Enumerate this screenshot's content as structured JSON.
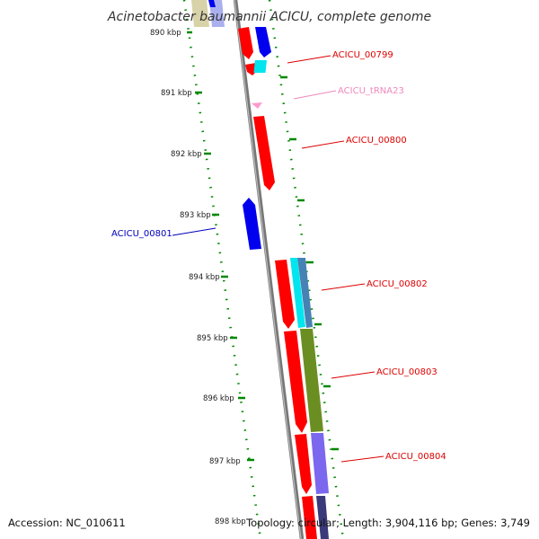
{
  "title": "Acinetobacter baumannii ACICU, complete genome",
  "footer": {
    "accession": "Accession: NC_010611",
    "summary": "Topology: circular; Length: 3,904,116 bp; Genes: 3,749"
  },
  "ticks": [
    "890 kbp",
    "891 kbp",
    "892 kbp",
    "893 kbp",
    "894 kbp",
    "895 kbp",
    "896 kbp",
    "897 kbp",
    "898 kbp"
  ],
  "genes": [
    {
      "label": "ACICU_00799",
      "color": "#dd0000"
    },
    {
      "label": "ACICU_tRNA23",
      "color": "#ee88bb"
    },
    {
      "label": "ACICU_00800",
      "color": "#dd0000"
    },
    {
      "label": "ACICU_00801",
      "color": "#0000bb"
    },
    {
      "label": "ACICU_00802",
      "color": "#dd0000"
    },
    {
      "label": "ACICU_00803",
      "color": "#dd0000"
    },
    {
      "label": "ACICU_00804",
      "color": "#dd0000"
    }
  ],
  "colors": {
    "cds": "#ff0000",
    "cds_reverse": "#0000ee",
    "trna": "#ff99cc",
    "cyan_feature": "#00e5ee",
    "steel_feature": "#4682b4",
    "olive_feature": "#6b8e23",
    "purple_feature": "#7b68ee",
    "backbone": "#888888",
    "tick": "#008800"
  }
}
